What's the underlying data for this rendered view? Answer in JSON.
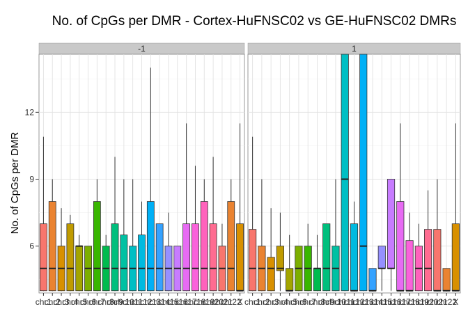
{
  "chart_data": {
    "type": "boxplot",
    "title": "No. of CpGs per DMR - Cortex-HuFNSC02 vs GE-HuFNSC02 DMRs",
    "xlabel": "",
    "ylabel": "No. of CpGs per DMR",
    "yticks": [
      6,
      9,
      12
    ],
    "ylim": [
      3.9,
      14.6
    ],
    "grid": true,
    "legend": "none",
    "categories": [
      "chr1",
      "chr2",
      "chr3",
      "chr4",
      "chr5",
      "chr6",
      "chr7",
      "chr8",
      "chr9",
      "chr10",
      "chr11",
      "chr12",
      "chr13",
      "chr14",
      "chr15",
      "chr16",
      "chr17",
      "chr18",
      "chr19",
      "chr20",
      "chr21",
      "chr22",
      "chrX"
    ],
    "tick_labels": [
      "chr1",
      "chr2",
      "chr3",
      "chr4",
      "chr5",
      "chr6",
      "chr7",
      "chr8",
      "chr9",
      "chr10",
      "chr11",
      "chr12",
      "chr13",
      "chr14",
      "chr15",
      "chr16",
      "chr17",
      "chr18",
      "chr19",
      "chr20",
      "chr21",
      "chr22",
      "X"
    ],
    "colors": [
      "#F8766D",
      "#EA8331",
      "#D89000",
      "#C09B00",
      "#A3A500",
      "#7CAE00",
      "#39B600",
      "#00BB4E",
      "#00BF7D",
      "#00C1A3",
      "#00BFC4",
      "#00BAE0",
      "#00B0F6",
      "#35A2FF",
      "#9590FF",
      "#C77CFF",
      "#E76BF3",
      "#FA62DB",
      "#FF62BC",
      "#FF6C91",
      "#F8766D",
      "#EA8331",
      "#D89000"
    ],
    "facets": [
      {
        "label": "-1",
        "boxes": [
          {
            "whisker_low": 4,
            "q1": 4,
            "median": 5,
            "q3": 7,
            "whisker_high": 10.9
          },
          {
            "whisker_low": 4,
            "q1": 4,
            "median": 5,
            "q3": 8,
            "whisker_high": 9
          },
          {
            "whisker_low": 4,
            "q1": 4,
            "median": 5,
            "q3": 6,
            "whisker_high": 7.7
          },
          {
            "whisker_low": 4,
            "q1": 4,
            "median": 5,
            "q3": 7,
            "whisker_high": 7.4
          },
          {
            "whisker_low": 4,
            "q1": 4,
            "median": 6,
            "q3": 6,
            "whisker_high": 6.5
          },
          {
            "whisker_low": 4,
            "q1": 4,
            "median": 5,
            "q3": 6,
            "whisker_high": 6
          },
          {
            "whisker_low": 4,
            "q1": 4,
            "median": 5,
            "q3": 8,
            "whisker_high": 9
          },
          {
            "whisker_low": 4,
            "q1": 4,
            "median": 5,
            "q3": 6,
            "whisker_high": 6.5
          },
          {
            "whisker_low": 4,
            "q1": 4,
            "median": 5,
            "q3": 7,
            "whisker_high": 10
          },
          {
            "whisker_low": 4,
            "q1": 4,
            "median": 5,
            "q3": 6.5,
            "whisker_high": 9
          },
          {
            "whisker_low": 4,
            "q1": 4,
            "median": 5,
            "q3": 6,
            "whisker_high": 9
          },
          {
            "whisker_low": 4,
            "q1": 4,
            "median": 5,
            "q3": 6.5,
            "whisker_high": 8
          },
          {
            "whisker_low": 4,
            "q1": 4,
            "median": 5,
            "q3": 8,
            "whisker_high": 14
          },
          {
            "whisker_low": 4,
            "q1": 4,
            "median": 5,
            "q3": 7,
            "whisker_high": 7
          },
          {
            "whisker_low": 4,
            "q1": 4,
            "median": 5,
            "q3": 6,
            "whisker_high": 7.5
          },
          {
            "whisker_low": 4,
            "q1": 4,
            "median": 5,
            "q3": 6,
            "whisker_high": 6
          },
          {
            "whisker_low": 4,
            "q1": 4,
            "median": 5,
            "q3": 7,
            "whisker_high": 11.5
          },
          {
            "whisker_low": 4,
            "q1": 4,
            "median": 5,
            "q3": 7,
            "whisker_high": 9.6
          },
          {
            "whisker_low": 4,
            "q1": 4,
            "median": 5,
            "q3": 8,
            "whisker_high": 9
          },
          {
            "whisker_low": 4,
            "q1": 4,
            "median": 5,
            "q3": 7,
            "whisker_high": 10
          },
          {
            "whisker_low": 4,
            "q1": 4,
            "median": 5,
            "q3": 6,
            "whisker_high": 7
          },
          {
            "whisker_low": 4,
            "q1": 4,
            "median": 5,
            "q3": 8,
            "whisker_high": 9
          },
          {
            "whisker_low": 4,
            "q1": 4,
            "median": 4,
            "q3": 7,
            "whisker_high": 11.5
          }
        ]
      },
      {
        "label": "1",
        "boxes": [
          {
            "whisker_low": 4,
            "q1": 4,
            "median": 5,
            "q3": 6.75,
            "whisker_high": 10.9
          },
          {
            "whisker_low": 4,
            "q1": 4,
            "median": 5,
            "q3": 6,
            "whisker_high": 9
          },
          {
            "whisker_low": 4,
            "q1": 4,
            "median": 5,
            "q3": 5.5,
            "whisker_high": 7.7
          },
          {
            "whisker_low": 4,
            "q1": 4.9,
            "median": 5,
            "q3": 6,
            "whisker_high": 7.5
          },
          {
            "whisker_low": 4,
            "q1": 4,
            "median": 4,
            "q3": 5,
            "whisker_high": 6.5
          },
          {
            "whisker_low": 4,
            "q1": 4,
            "median": 5,
            "q3": 6,
            "whisker_high": 6
          },
          {
            "whisker_low": 4,
            "q1": 4,
            "median": 5,
            "q3": 6,
            "whisker_high": 7
          },
          {
            "whisker_low": 4,
            "q1": 4,
            "median": 5,
            "q3": 5,
            "whisker_high": 6.5
          },
          {
            "whisker_low": 4,
            "q1": 4,
            "median": 5,
            "q3": 7,
            "whisker_high": 7
          },
          {
            "whisker_low": 4,
            "q1": 4,
            "median": 5,
            "q3": 6,
            "whisker_high": 9
          },
          {
            "whisker_low": 4,
            "q1": 4,
            "median": 9,
            "q3": 14.6,
            "whisker_high": 14.6
          },
          {
            "whisker_low": 4,
            "q1": 4,
            "median": 4,
            "q3": 7,
            "whisker_high": 8
          },
          {
            "whisker_low": 4,
            "q1": 4,
            "median": 6,
            "q3": 14.6,
            "whisker_high": 14.6
          },
          {
            "whisker_low": 4,
            "q1": 4,
            "median": 4,
            "q3": 5,
            "whisker_high": 5
          },
          {
            "whisker_low": 4,
            "q1": 5,
            "median": 5,
            "q3": 6,
            "whisker_high": 6
          },
          {
            "whisker_low": 4,
            "q1": 5,
            "median": 5,
            "q3": 9,
            "whisker_high": 9
          },
          {
            "whisker_low": 4,
            "q1": 4,
            "median": 4,
            "q3": 8,
            "whisker_high": 11.5
          },
          {
            "whisker_low": 4,
            "q1": 4,
            "median": 4,
            "q3": 6.25,
            "whisker_high": 7.5
          },
          {
            "whisker_low": 4,
            "q1": 4,
            "median": 5,
            "q3": 6,
            "whisker_high": 7
          },
          {
            "whisker_low": 4,
            "q1": 4,
            "median": 5,
            "q3": 6.75,
            "whisker_high": 8.5
          },
          {
            "whisker_low": 4,
            "q1": 4,
            "median": 4,
            "q3": 6.75,
            "whisker_high": 9
          },
          {
            "whisker_low": 4,
            "q1": 4,
            "median": 4,
            "q3": 5,
            "whisker_high": 5
          },
          {
            "whisker_low": 4,
            "q1": 4,
            "median": 4,
            "q3": 7,
            "whisker_high": 11.5
          }
        ]
      }
    ]
  }
}
